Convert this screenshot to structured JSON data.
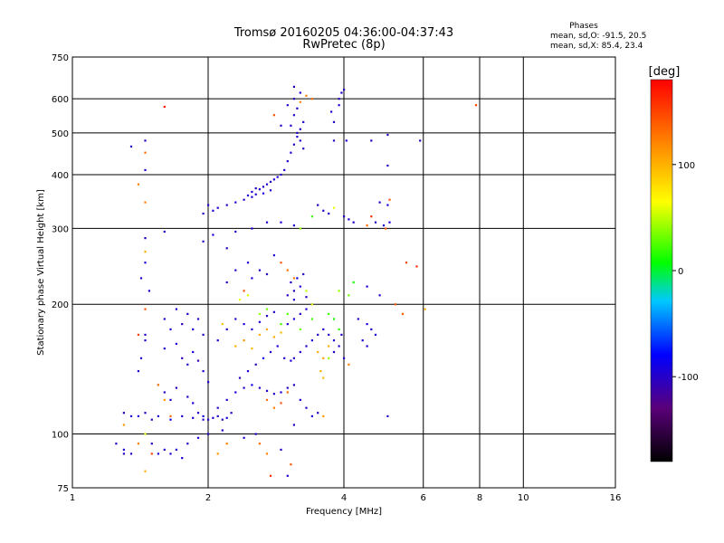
{
  "chart_data": {
    "type": "scatter",
    "title": "Tromsø 20160205 04:36:00-04:37:43",
    "subtitle": "RwPretec (8p)",
    "xlabel": "Frequency [MHz]",
    "ylabel": "Stationary phase Virtual Height [km]",
    "x_scale": "log",
    "y_scale": "log",
    "xlim": [
      1,
      16
    ],
    "ylim": [
      75,
      750
    ],
    "x_ticks": [
      1,
      2,
      4,
      6,
      8,
      10,
      16
    ],
    "y_ticks": [
      75,
      100,
      200,
      300,
      400,
      500,
      600,
      750
    ],
    "grid": true,
    "phases_title": "Phases",
    "phases_lines": [
      "mean, sd,O: -91.5, 20.5",
      "mean, sd,X:  85.4, 23.4"
    ],
    "colorbar": {
      "label": "[deg]",
      "ticks": [
        100,
        0,
        -100
      ],
      "range": [
        -180,
        180
      ],
      "colors": [
        "#000000",
        "#5a007a",
        "#0000ff",
        "#00c8ff",
        "#00ff00",
        "#ffff00",
        "#ff8000",
        "#ff0000"
      ]
    },
    "points": [
      [
        1.6,
        158,
        -100
      ],
      [
        1.7,
        162,
        -95
      ],
      [
        1.75,
        150,
        -105
      ],
      [
        1.8,
        145,
        -100
      ],
      [
        1.85,
        155,
        -90
      ],
      [
        1.9,
        148,
        -110
      ],
      [
        1.95,
        140,
        -95
      ],
      [
        2.0,
        132,
        -100
      ],
      [
        1.55,
        130,
        -90
      ],
      [
        1.6,
        125,
        -100
      ],
      [
        1.65,
        120,
        -95
      ],
      [
        1.7,
        128,
        -105
      ],
      [
        1.8,
        122,
        -100
      ],
      [
        1.85,
        118,
        -95
      ],
      [
        1.9,
        112,
        -100
      ],
      [
        1.95,
        110,
        -90
      ],
      [
        2.0,
        108,
        -100
      ],
      [
        2.05,
        109,
        -95
      ],
      [
        2.1,
        110,
        -100
      ],
      [
        2.15,
        108,
        -105
      ],
      [
        2.2,
        109,
        -90
      ],
      [
        2.25,
        112,
        -100
      ],
      [
        1.4,
        110,
        -95
      ],
      [
        1.45,
        112,
        -100
      ],
      [
        1.5,
        108,
        -105
      ],
      [
        1.55,
        110,
        -100
      ],
      [
        1.35,
        110,
        -95
      ],
      [
        1.3,
        112,
        -100
      ],
      [
        1.65,
        108,
        -90
      ],
      [
        1.75,
        110,
        -100
      ],
      [
        1.85,
        109,
        -95
      ],
      [
        1.95,
        108,
        -100
      ],
      [
        2.1,
        115,
        -95
      ],
      [
        2.2,
        120,
        -100
      ],
      [
        2.3,
        125,
        -95
      ],
      [
        2.4,
        128,
        -100
      ],
      [
        2.5,
        130,
        -90
      ],
      [
        2.6,
        128,
        -100
      ],
      [
        2.7,
        126,
        -95
      ],
      [
        2.8,
        124,
        -100
      ],
      [
        2.9,
        125,
        -95
      ],
      [
        3.0,
        128,
        -100
      ],
      [
        2.35,
        135,
        -105
      ],
      [
        2.45,
        140,
        -95
      ],
      [
        2.55,
        145,
        -100
      ],
      [
        2.65,
        150,
        -90
      ],
      [
        2.75,
        155,
        -100
      ],
      [
        2.85,
        160,
        -95
      ],
      [
        2.95,
        150,
        -100
      ],
      [
        3.05,
        148,
        -95
      ],
      [
        3.1,
        150,
        -100
      ],
      [
        3.2,
        155,
        -95
      ],
      [
        3.3,
        160,
        -100
      ],
      [
        3.4,
        165,
        -90
      ],
      [
        3.5,
        170,
        -100
      ],
      [
        3.6,
        175,
        -95
      ],
      [
        3.7,
        170,
        -100
      ],
      [
        3.8,
        165,
        -95
      ],
      [
        3.9,
        160,
        -100
      ],
      [
        3.0,
        180,
        -100
      ],
      [
        3.1,
        185,
        -95
      ],
      [
        3.2,
        190,
        -100
      ],
      [
        3.3,
        195,
        -95
      ],
      [
        3.4,
        200,
        -100
      ],
      [
        3.0,
        210,
        -105
      ],
      [
        3.1,
        215,
        -100
      ],
      [
        3.2,
        220,
        -95
      ],
      [
        3.05,
        225,
        -100
      ],
      [
        3.15,
        230,
        -90
      ],
      [
        3.25,
        235,
        -100
      ],
      [
        3.1,
        205,
        -95
      ],
      [
        3.3,
        208,
        -100
      ],
      [
        2.3,
        185,
        -100
      ],
      [
        2.4,
        180,
        -95
      ],
      [
        2.5,
        175,
        -100
      ],
      [
        2.6,
        182,
        -95
      ],
      [
        2.7,
        188,
        -100
      ],
      [
        2.8,
        192,
        -95
      ],
      [
        2.2,
        175,
        -100
      ],
      [
        2.1,
        165,
        -95
      ],
      [
        1.95,
        170,
        -100
      ],
      [
        1.85,
        175,
        -95
      ],
      [
        1.9,
        185,
        -100
      ],
      [
        1.8,
        190,
        -95
      ],
      [
        1.7,
        195,
        -100
      ],
      [
        1.75,
        180,
        -105
      ],
      [
        1.65,
        175,
        -95
      ],
      [
        1.6,
        185,
        -100
      ],
      [
        2.0,
        340,
        -100
      ],
      [
        2.05,
        330,
        -95
      ],
      [
        1.95,
        325,
        -100
      ],
      [
        2.1,
        335,
        -95
      ],
      [
        2.2,
        340,
        -100
      ],
      [
        2.3,
        345,
        -95
      ],
      [
        2.4,
        350,
        -100
      ],
      [
        2.5,
        355,
        -95
      ],
      [
        2.55,
        360,
        -100
      ],
      [
        2.6,
        370,
        -95
      ],
      [
        2.65,
        375,
        -100
      ],
      [
        2.7,
        380,
        -95
      ],
      [
        2.75,
        385,
        -100
      ],
      [
        2.8,
        390,
        -95
      ],
      [
        2.5,
        365,
        -100
      ],
      [
        2.45,
        358,
        -95
      ],
      [
        2.55,
        372,
        -100
      ],
      [
        2.65,
        362,
        -95
      ],
      [
        2.75,
        368,
        -100
      ],
      [
        2.85,
        395,
        -95
      ],
      [
        2.9,
        400,
        -100
      ],
      [
        2.95,
        410,
        -95
      ],
      [
        3.0,
        430,
        -100
      ],
      [
        3.05,
        450,
        -95
      ],
      [
        3.1,
        470,
        -100
      ],
      [
        3.15,
        490,
        -95
      ],
      [
        3.2,
        510,
        -100
      ],
      [
        3.25,
        530,
        -95
      ],
      [
        3.1,
        550,
        -100
      ],
      [
        3.15,
        570,
        -95
      ],
      [
        3.1,
        600,
        -100
      ],
      [
        3.2,
        620,
        -95
      ],
      [
        3.0,
        580,
        -100
      ],
      [
        3.05,
        520,
        -95
      ],
      [
        3.15,
        500,
        -100
      ],
      [
        3.2,
        480,
        -95
      ],
      [
        3.25,
        460,
        -100
      ],
      [
        3.9,
        600,
        -100
      ],
      [
        3.95,
        620,
        -95
      ],
      [
        4.0,
        630,
        -100
      ],
      [
        2.3,
        160,
        100
      ],
      [
        2.4,
        165,
        110
      ],
      [
        2.5,
        158,
        95
      ],
      [
        2.6,
        170,
        100
      ],
      [
        2.7,
        175,
        105
      ],
      [
        2.8,
        168,
        100
      ],
      [
        2.9,
        172,
        95
      ],
      [
        3.5,
        155,
        100
      ],
      [
        3.6,
        150,
        105
      ],
      [
        3.7,
        160,
        100
      ],
      [
        3.55,
        140,
        100
      ],
      [
        3.6,
        135,
        95
      ],
      [
        2.15,
        180,
        90
      ],
      [
        2.35,
        205,
        60
      ],
      [
        2.45,
        210,
        55
      ],
      [
        3.3,
        215,
        50
      ],
      [
        3.4,
        200,
        60
      ],
      [
        3.9,
        215,
        40
      ],
      [
        3.7,
        190,
        20
      ],
      [
        3.8,
        185,
        10
      ],
      [
        3.9,
        175,
        15
      ],
      [
        2.9,
        180,
        20
      ],
      [
        2.6,
        190,
        40
      ],
      [
        2.7,
        195,
        30
      ],
      [
        3.0,
        190,
        25
      ],
      [
        3.2,
        175,
        30
      ],
      [
        3.4,
        185,
        20
      ],
      [
        1.45,
        285,
        -100
      ],
      [
        1.45,
        250,
        -95
      ],
      [
        1.42,
        230,
        -100
      ],
      [
        1.48,
        215,
        -95
      ],
      [
        1.45,
        170,
        -100
      ],
      [
        1.45,
        165,
        -95
      ],
      [
        1.42,
        150,
        -100
      ],
      [
        1.4,
        140,
        -95
      ],
      [
        1.5,
        95,
        -100
      ],
      [
        1.55,
        90,
        -95
      ],
      [
        1.6,
        92,
        -100
      ],
      [
        1.65,
        90,
        -95
      ],
      [
        1.35,
        90,
        -100
      ],
      [
        1.3,
        92,
        -95
      ],
      [
        1.25,
        95,
        -100
      ],
      [
        1.7,
        92,
        -95
      ],
      [
        1.8,
        95,
        -100
      ],
      [
        1.9,
        98,
        -95
      ],
      [
        2.0,
        100,
        -100
      ],
      [
        1.75,
        88,
        -95
      ],
      [
        1.45,
        480,
        -100
      ],
      [
        1.45,
        410,
        -95
      ],
      [
        1.35,
        465,
        -100
      ],
      [
        1.4,
        380,
        120
      ],
      [
        1.45,
        450,
        130
      ],
      [
        1.45,
        345,
        120
      ],
      [
        1.6,
        575,
        170
      ],
      [
        1.6,
        295,
        -100
      ],
      [
        1.45,
        265,
        100
      ],
      [
        1.45,
        195,
        140
      ],
      [
        1.4,
        170,
        150
      ],
      [
        1.55,
        130,
        120
      ],
      [
        1.6,
        120,
        110
      ],
      [
        1.65,
        110,
        130
      ],
      [
        1.3,
        105,
        110
      ],
      [
        1.45,
        100,
        60
      ],
      [
        1.45,
        82,
        100
      ],
      [
        1.5,
        90,
        150
      ],
      [
        1.4,
        95,
        120
      ],
      [
        2.2,
        270,
        -100
      ],
      [
        2.3,
        240,
        -100
      ],
      [
        2.5,
        230,
        -95
      ],
      [
        2.6,
        240,
        -100
      ],
      [
        2.45,
        250,
        -95
      ],
      [
        2.7,
        235,
        -100
      ],
      [
        2.8,
        260,
        -95
      ],
      [
        2.9,
        250,
        140
      ],
      [
        3.0,
        240,
        130
      ],
      [
        3.1,
        230,
        120
      ],
      [
        2.4,
        215,
        140
      ],
      [
        2.2,
        225,
        -100
      ],
      [
        3.5,
        340,
        -100
      ],
      [
        3.6,
        330,
        -95
      ],
      [
        3.7,
        325,
        -100
      ],
      [
        3.4,
        320,
        20
      ],
      [
        3.8,
        335,
        60
      ],
      [
        4.0,
        320,
        -100
      ],
      [
        4.1,
        315,
        -95
      ],
      [
        4.2,
        310,
        -100
      ],
      [
        4.5,
        305,
        130
      ],
      [
        4.6,
        320,
        160
      ],
      [
        4.7,
        310,
        -100
      ],
      [
        4.9,
        305,
        -95
      ],
      [
        4.95,
        300,
        140
      ],
      [
        4.8,
        345,
        -100
      ],
      [
        5.0,
        340,
        -95
      ],
      [
        5.0,
        420,
        -100
      ],
      [
        5.05,
        350,
        140
      ],
      [
        5.0,
        495,
        -100
      ],
      [
        5.9,
        480,
        -100
      ],
      [
        5.05,
        310,
        -95
      ],
      [
        5.5,
        250,
        150
      ],
      [
        5.8,
        245,
        160
      ],
      [
        5.2,
        200,
        140
      ],
      [
        5.4,
        190,
        140
      ],
      [
        6.05,
        195,
        100
      ],
      [
        4.8,
        210,
        -100
      ],
      [
        4.5,
        220,
        -95
      ],
      [
        4.2,
        225,
        10
      ],
      [
        4.1,
        210,
        30
      ],
      [
        4.3,
        185,
        -100
      ],
      [
        4.5,
        180,
        -95
      ],
      [
        4.6,
        175,
        -100
      ],
      [
        4.7,
        170,
        -95
      ],
      [
        4.5,
        160,
        -100
      ],
      [
        4.4,
        165,
        -95
      ],
      [
        4.0,
        150,
        -100
      ],
      [
        4.1,
        145,
        120
      ],
      [
        3.95,
        170,
        -100
      ],
      [
        3.8,
        155,
        -95
      ],
      [
        3.7,
        150,
        40
      ],
      [
        3.8,
        480,
        -100
      ],
      [
        4.05,
        480,
        -95
      ],
      [
        4.6,
        480,
        -100
      ],
      [
        3.8,
        530,
        -95
      ],
      [
        3.75,
        560,
        -100
      ],
      [
        3.9,
        580,
        -95
      ],
      [
        3.3,
        610,
        120
      ],
      [
        3.4,
        600,
        130
      ],
      [
        2.8,
        550,
        140
      ],
      [
        2.9,
        520,
        -100
      ],
      [
        3.1,
        640,
        -100
      ],
      [
        3.2,
        590,
        120
      ],
      [
        7.85,
        580,
        150
      ],
      [
        2.7,
        120,
        130
      ],
      [
        2.8,
        115,
        120
      ],
      [
        2.9,
        118,
        140
      ],
      [
        3.0,
        125,
        130
      ],
      [
        3.1,
        130,
        -100
      ],
      [
        3.2,
        120,
        -95
      ],
      [
        3.3,
        115,
        -100
      ],
      [
        3.4,
        110,
        -95
      ],
      [
        3.5,
        112,
        -100
      ],
      [
        3.6,
        110,
        110
      ],
      [
        3.1,
        105,
        -100
      ],
      [
        2.55,
        100,
        -95
      ],
      [
        2.4,
        98,
        -100
      ],
      [
        2.6,
        95,
        130
      ],
      [
        2.7,
        90,
        120
      ],
      [
        2.9,
        92,
        -100
      ],
      [
        3.0,
        80,
        -95
      ],
      [
        3.05,
        85,
        140
      ],
      [
        2.75,
        80,
        160
      ],
      [
        2.1,
        90,
        110
      ],
      [
        2.2,
        95,
        120
      ],
      [
        1.3,
        90,
        -100
      ],
      [
        2.15,
        102,
        -100
      ],
      [
        5.0,
        110,
        -100
      ],
      [
        1.95,
        280,
        -100
      ],
      [
        2.05,
        290,
        -95
      ],
      [
        2.3,
        295,
        -100
      ],
      [
        2.5,
        300,
        -95
      ],
      [
        2.7,
        310,
        -100
      ],
      [
        2.9,
        310,
        -95
      ],
      [
        3.1,
        305,
        -100
      ],
      [
        3.2,
        300,
        40
      ]
    ]
  }
}
